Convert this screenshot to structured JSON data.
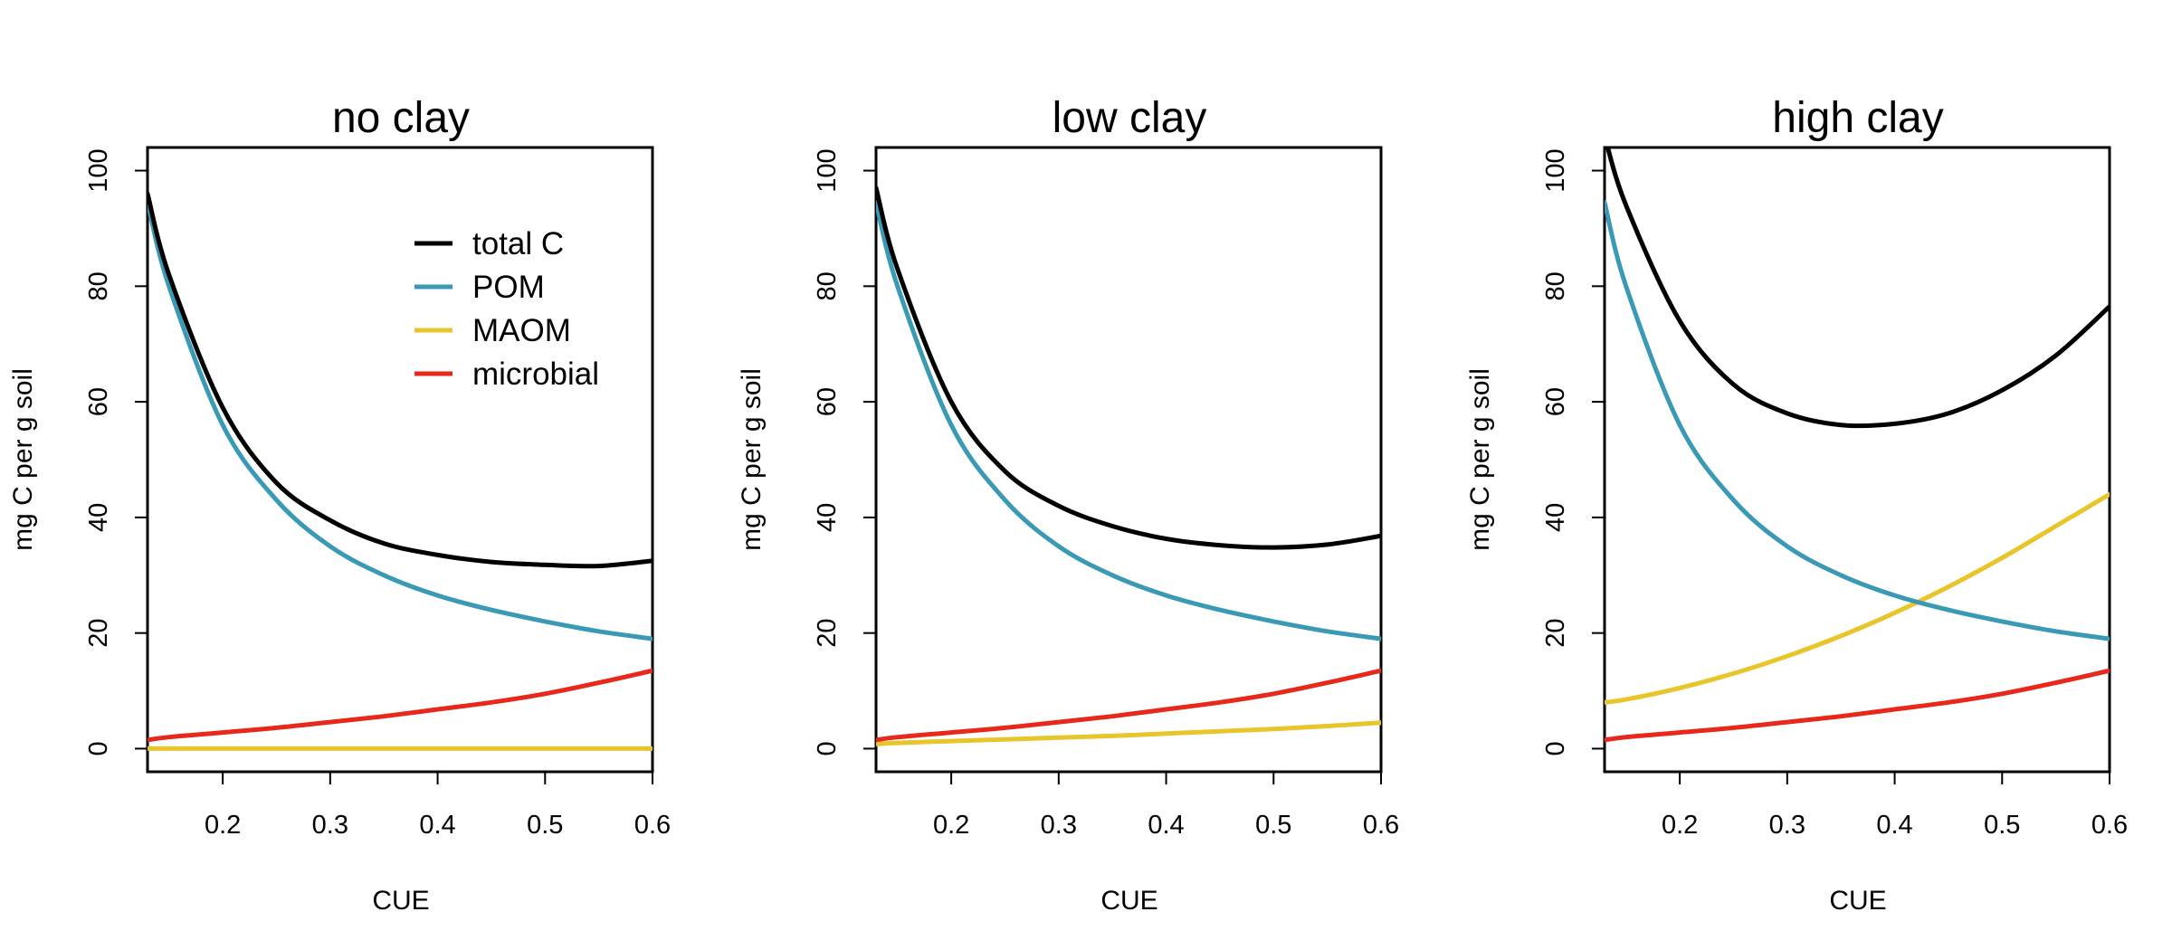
{
  "chart_data": [
    {
      "type": "line",
      "title": "no clay",
      "xlabel": "CUE",
      "ylabel": "mg C per g soil",
      "xlim": [
        0.13,
        0.6
      ],
      "ylim": [
        -4,
        104
      ],
      "xticks": [
        "0.2",
        "0.3",
        "0.4",
        "0.5",
        "0.6"
      ],
      "yticks": [
        "0",
        "20",
        "40",
        "60",
        "80",
        "100"
      ],
      "grid": false,
      "legend": {
        "placement": "top-right"
      },
      "x": [
        0.13,
        0.15,
        0.2,
        0.25,
        0.3,
        0.35,
        0.4,
        0.45,
        0.5,
        0.55,
        0.6
      ],
      "series": [
        {
          "name": "total C",
          "color": "#000000",
          "values": [
            96,
            82,
            59,
            46,
            39.5,
            35.5,
            33.5,
            32.3,
            31.8,
            31.6,
            32.5
          ]
        },
        {
          "name": "POM",
          "color": "#3a9ab5",
          "values": [
            94.5,
            80,
            56,
            43,
            35,
            30,
            26.5,
            24,
            22,
            20.3,
            19
          ]
        },
        {
          "name": "MAOM",
          "color": "#e8c52b",
          "values": [
            0,
            0,
            0,
            0,
            0,
            0,
            0,
            0,
            0,
            0,
            0
          ]
        },
        {
          "name": "microbial",
          "color": "#e8281b",
          "values": [
            1.5,
            2,
            2.8,
            3.6,
            4.6,
            5.6,
            6.8,
            8,
            9.5,
            11.4,
            13.5
          ]
        }
      ]
    },
    {
      "type": "line",
      "title": "low clay",
      "xlabel": "CUE",
      "ylabel": "mg C per g soil",
      "xlim": [
        0.13,
        0.6
      ],
      "ylim": [
        -4,
        104
      ],
      "xticks": [
        "0.2",
        "0.3",
        "0.4",
        "0.5",
        "0.6"
      ],
      "yticks": [
        "0",
        "20",
        "40",
        "60",
        "80",
        "100"
      ],
      "grid": false,
      "x": [
        0.13,
        0.15,
        0.2,
        0.25,
        0.3,
        0.35,
        0.4,
        0.45,
        0.5,
        0.55,
        0.6
      ],
      "series": [
        {
          "name": "total C",
          "color": "#000000",
          "values": [
            97,
            83,
            60,
            48,
            42,
            38.5,
            36.3,
            35.2,
            34.8,
            35.3,
            36.8
          ]
        },
        {
          "name": "POM",
          "color": "#3a9ab5",
          "values": [
            94.5,
            80,
            56,
            43,
            35,
            30,
            26.5,
            24,
            22,
            20.3,
            19
          ]
        },
        {
          "name": "MAOM",
          "color": "#e8c52b",
          "values": [
            0.8,
            1,
            1.3,
            1.6,
            1.9,
            2.2,
            2.6,
            3,
            3.4,
            3.9,
            4.5
          ]
        },
        {
          "name": "microbial",
          "color": "#e8281b",
          "values": [
            1.5,
            2,
            2.8,
            3.6,
            4.6,
            5.6,
            6.8,
            8,
            9.5,
            11.4,
            13.5
          ]
        }
      ]
    },
    {
      "type": "line",
      "title": "high clay",
      "xlabel": "CUE",
      "ylabel": "mg C per g soil",
      "xlim": [
        0.13,
        0.6
      ],
      "ylim": [
        -4,
        104
      ],
      "xticks": [
        "0.2",
        "0.3",
        "0.4",
        "0.5",
        "0.6"
      ],
      "yticks": [
        "0",
        "20",
        "40",
        "60",
        "80",
        "100"
      ],
      "grid": false,
      "x": [
        0.13,
        0.15,
        0.2,
        0.25,
        0.3,
        0.35,
        0.4,
        0.45,
        0.5,
        0.55,
        0.6
      ],
      "series": [
        {
          "name": "total C",
          "color": "#000000",
          "values": [
            106,
            94,
            74,
            63,
            58,
            56,
            56.2,
            58,
            62,
            68,
            76.5
          ]
        },
        {
          "name": "POM",
          "color": "#3a9ab5",
          "values": [
            94.5,
            80,
            56,
            43,
            35,
            30,
            26.5,
            24,
            22,
            20.3,
            19
          ]
        },
        {
          "name": "MAOM",
          "color": "#e8c52b",
          "values": [
            8,
            8.5,
            10.5,
            13,
            16,
            19.5,
            23.5,
            28,
            33,
            38.5,
            44
          ]
        },
        {
          "name": "microbial",
          "color": "#e8281b",
          "values": [
            1.5,
            2,
            2.8,
            3.6,
            4.6,
            5.6,
            6.8,
            8,
            9.5,
            11.4,
            13.5
          ]
        }
      ]
    }
  ]
}
